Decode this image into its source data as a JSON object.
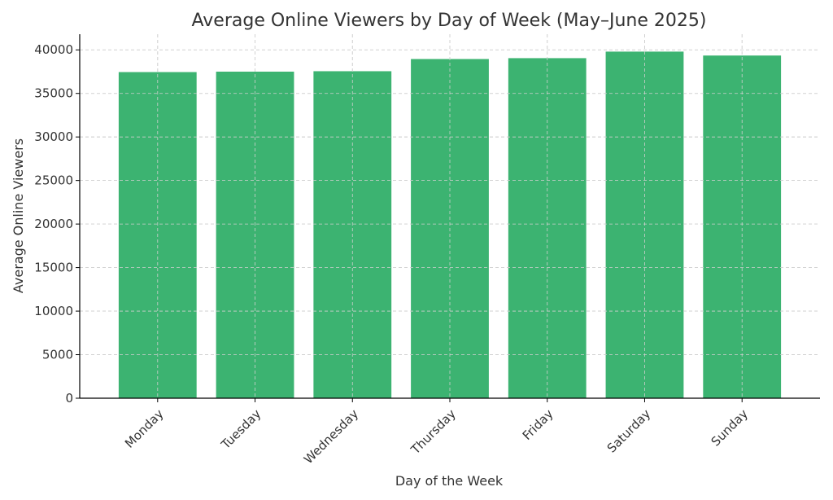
{
  "chart_data": {
    "type": "bar",
    "title": "Average Online Viewers by Day of Week (May–June 2025)",
    "xlabel": "Day of the Week",
    "ylabel": "Average Online Viewers",
    "categories": [
      "Monday",
      "Tuesday",
      "Wednesday",
      "Thursday",
      "Friday",
      "Saturday",
      "Sunday"
    ],
    "values": [
      37450,
      37500,
      37550,
      38950,
      39050,
      39800,
      39350
    ],
    "ylim": [
      0,
      41800
    ],
    "yticks": [
      0,
      5000,
      10000,
      15000,
      20000,
      25000,
      30000,
      35000,
      40000
    ],
    "ytick_labels": [
      "0",
      "5000",
      "10000",
      "15000",
      "20000",
      "25000",
      "30000",
      "35000",
      "40000"
    ],
    "grid": true,
    "bar_color": "#3cb371"
  }
}
